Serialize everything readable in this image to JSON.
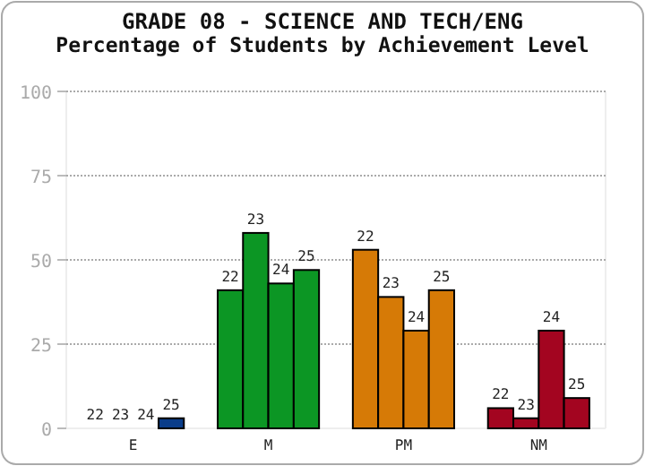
{
  "chart_data": {
    "type": "bar",
    "title": "GRADE 08 - SCIENCE AND TECH/ENG",
    "subtitle": "Percentage of Students by Achievement Level",
    "categories": [
      "E",
      "M",
      "PM",
      "NM"
    ],
    "series": [
      {
        "name": "22",
        "colors": [
          "#0a3d8a",
          "#0c9624",
          "#d67a06",
          "#a30520"
        ],
        "values": [
          0,
          41,
          53,
          6
        ]
      },
      {
        "name": "23",
        "colors": [
          "#0a3d8a",
          "#0c9624",
          "#d67a06",
          "#a30520"
        ],
        "values": [
          0,
          58,
          39,
          3
        ]
      },
      {
        "name": "24",
        "colors": [
          "#0a3d8a",
          "#0c9624",
          "#d67a06",
          "#a30520"
        ],
        "values": [
          0,
          43,
          29,
          29
        ]
      },
      {
        "name": "25",
        "colors": [
          "#0a3d8a",
          "#0c9624",
          "#d67a06",
          "#a30520"
        ],
        "values": [
          3,
          47,
          41,
          9
        ]
      }
    ],
    "ylim": [
      0,
      100
    ],
    "yticks": [
      0,
      25,
      50,
      75,
      100
    ],
    "grid": "y"
  }
}
